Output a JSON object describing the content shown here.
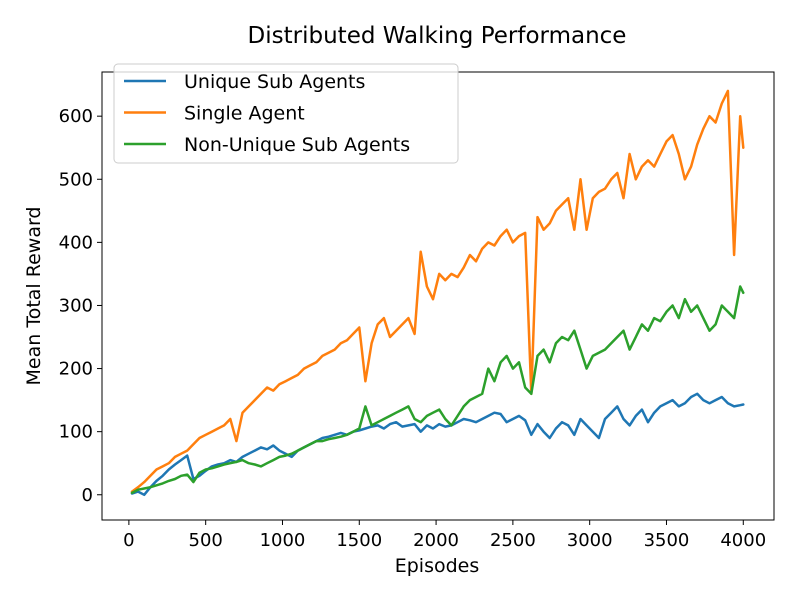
{
  "chart_data": {
    "type": "line",
    "title": "Distributed Walking Performance",
    "xlabel": "Episodes",
    "ylabel": "Mean Total Reward",
    "xlim": [
      -175,
      4200
    ],
    "ylim": [
      -40,
      670
    ],
    "xticks": [
      0,
      500,
      1000,
      1500,
      2000,
      2500,
      3000,
      3500,
      4000
    ],
    "yticks": [
      0,
      100,
      200,
      300,
      400,
      500,
      600
    ],
    "grid": false,
    "legend_position": "top-left",
    "series": [
      {
        "name": "Unique Sub Agents",
        "color": "#1f77b4",
        "x": [
          20,
          60,
          100,
          140,
          180,
          220,
          260,
          300,
          340,
          380,
          420,
          460,
          500,
          540,
          580,
          620,
          660,
          700,
          740,
          780,
          820,
          860,
          900,
          940,
          980,
          1020,
          1060,
          1100,
          1140,
          1180,
          1220,
          1260,
          1300,
          1340,
          1380,
          1420,
          1460,
          1500,
          1540,
          1580,
          1620,
          1660,
          1700,
          1740,
          1780,
          1820,
          1860,
          1900,
          1940,
          1980,
          2020,
          2060,
          2100,
          2140,
          2180,
          2220,
          2260,
          2300,
          2340,
          2380,
          2420,
          2460,
          2500,
          2540,
          2580,
          2620,
          2660,
          2700,
          2740,
          2780,
          2820,
          2860,
          2900,
          2940,
          2980,
          3020,
          3060,
          3100,
          3140,
          3180,
          3220,
          3260,
          3300,
          3340,
          3380,
          3420,
          3460,
          3500,
          3540,
          3580,
          3620,
          3660,
          3700,
          3740,
          3780,
          3820,
          3860,
          3900,
          3940,
          3980,
          4000
        ],
        "values": [
          2,
          5,
          0,
          12,
          22,
          30,
          40,
          48,
          55,
          62,
          25,
          30,
          38,
          45,
          48,
          50,
          55,
          52,
          60,
          65,
          70,
          75,
          72,
          78,
          70,
          65,
          60,
          70,
          75,
          80,
          85,
          90,
          92,
          95,
          98,
          95,
          100,
          102,
          105,
          108,
          110,
          105,
          112,
          115,
          108,
          110,
          112,
          100,
          110,
          105,
          112,
          108,
          110,
          115,
          120,
          118,
          115,
          120,
          125,
          130,
          128,
          115,
          120,
          125,
          118,
          95,
          112,
          100,
          90,
          105,
          115,
          110,
          95,
          120,
          110,
          100,
          90,
          120,
          130,
          140,
          120,
          110,
          125,
          135,
          115,
          130,
          140,
          145,
          150,
          140,
          145,
          155,
          160,
          150,
          145,
          150,
          155,
          145,
          140,
          142,
          143
        ]
      },
      {
        "name": "Single Agent",
        "color": "#ff7f0e",
        "x": [
          20,
          60,
          100,
          140,
          180,
          220,
          260,
          300,
          340,
          380,
          420,
          460,
          500,
          540,
          580,
          620,
          660,
          700,
          740,
          780,
          820,
          860,
          900,
          940,
          980,
          1020,
          1060,
          1100,
          1140,
          1180,
          1220,
          1260,
          1300,
          1340,
          1380,
          1420,
          1460,
          1500,
          1540,
          1580,
          1620,
          1660,
          1700,
          1740,
          1780,
          1820,
          1860,
          1900,
          1940,
          1980,
          2020,
          2060,
          2100,
          2140,
          2180,
          2220,
          2260,
          2300,
          2340,
          2380,
          2420,
          2460,
          2500,
          2540,
          2580,
          2620,
          2660,
          2700,
          2740,
          2780,
          2820,
          2860,
          2900,
          2940,
          2980,
          3020,
          3060,
          3100,
          3140,
          3180,
          3220,
          3260,
          3300,
          3340,
          3380,
          3420,
          3460,
          3500,
          3540,
          3580,
          3620,
          3660,
          3700,
          3740,
          3780,
          3820,
          3860,
          3900,
          3940,
          3980,
          4000
        ],
        "values": [
          5,
          12,
          20,
          30,
          40,
          45,
          50,
          60,
          65,
          70,
          80,
          90,
          95,
          100,
          105,
          110,
          120,
          85,
          130,
          140,
          150,
          160,
          170,
          165,
          175,
          180,
          185,
          190,
          200,
          205,
          210,
          220,
          225,
          230,
          240,
          245,
          255,
          265,
          180,
          240,
          270,
          280,
          250,
          260,
          270,
          280,
          255,
          385,
          330,
          310,
          350,
          340,
          350,
          345,
          360,
          380,
          370,
          390,
          400,
          395,
          410,
          420,
          400,
          410,
          415,
          160,
          440,
          420,
          430,
          450,
          460,
          470,
          420,
          500,
          420,
          470,
          480,
          485,
          500,
          510,
          470,
          540,
          500,
          520,
          530,
          520,
          540,
          560,
          570,
          540,
          500,
          520,
          555,
          580,
          600,
          590,
          620,
          640,
          380,
          600,
          550
        ]
      },
      {
        "name": "Non-Unique Sub Agents",
        "color": "#2ca02c",
        "x": [
          20,
          60,
          100,
          140,
          180,
          220,
          260,
          300,
          340,
          380,
          420,
          460,
          500,
          540,
          580,
          620,
          660,
          700,
          740,
          780,
          820,
          860,
          900,
          940,
          980,
          1020,
          1060,
          1100,
          1140,
          1180,
          1220,
          1260,
          1300,
          1340,
          1380,
          1420,
          1460,
          1500,
          1540,
          1580,
          1620,
          1660,
          1700,
          1740,
          1780,
          1820,
          1860,
          1900,
          1940,
          1980,
          2020,
          2060,
          2100,
          2140,
          2180,
          2220,
          2260,
          2300,
          2340,
          2380,
          2420,
          2460,
          2500,
          2540,
          2580,
          2620,
          2660,
          2700,
          2740,
          2780,
          2820,
          2860,
          2900,
          2940,
          2980,
          3020,
          3060,
          3100,
          3140,
          3180,
          3220,
          3260,
          3300,
          3340,
          3380,
          3420,
          3460,
          3500,
          3540,
          3580,
          3620,
          3660,
          3700,
          3740,
          3780,
          3820,
          3860,
          3900,
          3940,
          3980,
          4000
        ],
        "values": [
          3,
          8,
          10,
          12,
          15,
          18,
          22,
          25,
          30,
          32,
          20,
          35,
          40,
          42,
          45,
          48,
          50,
          52,
          55,
          50,
          48,
          45,
          50,
          55,
          60,
          62,
          65,
          70,
          75,
          80,
          85,
          85,
          88,
          90,
          92,
          95,
          100,
          105,
          140,
          110,
          115,
          120,
          125,
          130,
          135,
          140,
          120,
          115,
          125,
          130,
          135,
          120,
          110,
          125,
          140,
          150,
          155,
          160,
          200,
          180,
          210,
          220,
          200,
          210,
          170,
          160,
          220,
          230,
          210,
          240,
          250,
          245,
          260,
          230,
          200,
          220,
          225,
          230,
          240,
          250,
          260,
          230,
          250,
          270,
          260,
          280,
          275,
          290,
          300,
          280,
          310,
          290,
          300,
          280,
          260,
          270,
          300,
          290,
          280,
          330,
          320
        ]
      }
    ]
  }
}
